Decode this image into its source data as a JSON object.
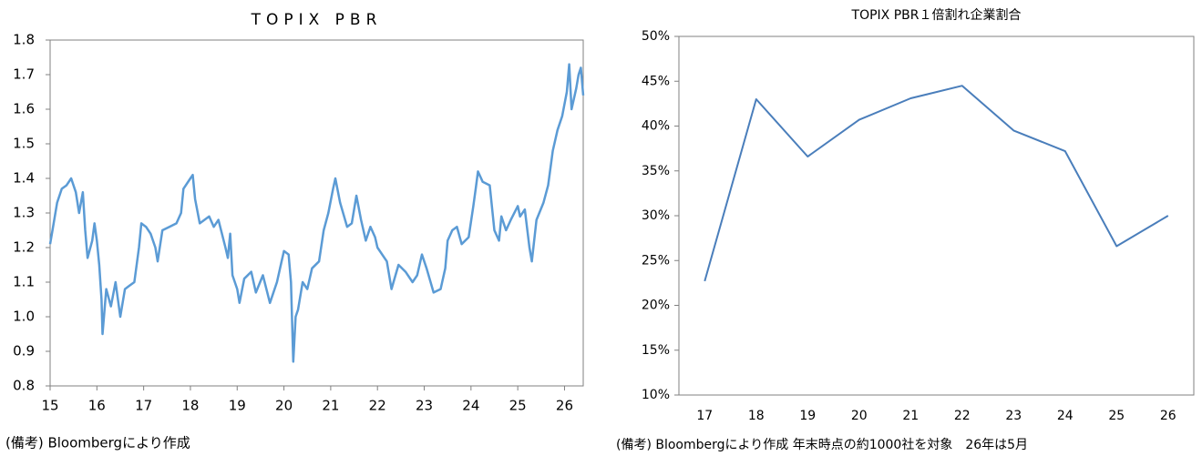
{
  "chart_data": [
    {
      "type": "line",
      "title": "TOPIX PBR",
      "note": "(備考) Bloombergにより作成",
      "color": "#5b9bd5",
      "xlim": [
        15,
        26.4
      ],
      "xticks": [
        15,
        16,
        17,
        18,
        19,
        20,
        21,
        22,
        23,
        24,
        25,
        26
      ],
      "ylim": [
        0.8,
        1.8
      ],
      "yticks": [
        1.8,
        1.7,
        1.6,
        1.5,
        1.4,
        1.3,
        1.2,
        1.1,
        {
          "value": 1,
          "label": "1.0"
        },
        0.9,
        0.8
      ],
      "x": [
        15.0,
        15.05,
        15.15,
        15.25,
        15.35,
        15.45,
        15.55,
        15.62,
        15.7,
        15.75,
        15.8,
        15.9,
        15.95,
        16.0,
        16.05,
        16.1,
        16.12,
        16.2,
        16.3,
        16.4,
        16.5,
        16.6,
        16.7,
        16.8,
        16.9,
        16.95,
        17.05,
        17.15,
        17.25,
        17.3,
        17.4,
        17.55,
        17.7,
        17.8,
        17.85,
        18.0,
        18.05,
        18.1,
        18.2,
        18.3,
        18.4,
        18.5,
        18.6,
        18.75,
        18.8,
        18.85,
        18.9,
        19.0,
        19.05,
        19.15,
        19.3,
        19.4,
        19.55,
        19.7,
        19.85,
        19.95,
        20.0,
        20.1,
        20.15,
        20.2,
        20.25,
        20.3,
        20.4,
        20.5,
        20.6,
        20.75,
        20.85,
        20.95,
        21.05,
        21.1,
        21.2,
        21.35,
        21.45,
        21.55,
        21.65,
        21.75,
        21.85,
        21.95,
        22.0,
        22.2,
        22.3,
        22.45,
        22.6,
        22.75,
        22.85,
        22.95,
        23.05,
        23.2,
        23.35,
        23.45,
        23.5,
        23.6,
        23.7,
        23.8,
        23.95,
        24.05,
        24.1,
        24.15,
        24.25,
        24.4,
        24.5,
        24.6,
        24.65,
        24.75,
        24.85,
        25.0,
        25.05,
        25.15,
        25.25,
        25.3,
        25.4,
        25.55,
        25.65,
        25.75,
        25.85,
        25.95,
        26.05,
        26.1,
        26.15,
        26.25,
        26.3,
        26.35,
        26.4
      ],
      "values": [
        1.21,
        1.25,
        1.33,
        1.37,
        1.38,
        1.4,
        1.36,
        1.3,
        1.36,
        1.25,
        1.17,
        1.22,
        1.27,
        1.22,
        1.15,
        1.05,
        0.95,
        1.08,
        1.03,
        1.1,
        1.0,
        1.08,
        1.09,
        1.1,
        1.2,
        1.27,
        1.26,
        1.24,
        1.2,
        1.16,
        1.25,
        1.26,
        1.27,
        1.3,
        1.37,
        1.4,
        1.41,
        1.34,
        1.27,
        1.28,
        1.29,
        1.26,
        1.28,
        1.2,
        1.17,
        1.24,
        1.12,
        1.08,
        1.04,
        1.11,
        1.13,
        1.07,
        1.12,
        1.04,
        1.1,
        1.16,
        1.19,
        1.18,
        1.1,
        0.87,
        1.0,
        1.02,
        1.1,
        1.08,
        1.14,
        1.16,
        1.25,
        1.3,
        1.37,
        1.4,
        1.33,
        1.26,
        1.27,
        1.35,
        1.28,
        1.22,
        1.26,
        1.23,
        1.2,
        1.16,
        1.08,
        1.15,
        1.13,
        1.1,
        1.12,
        1.18,
        1.14,
        1.07,
        1.08,
        1.14,
        1.22,
        1.25,
        1.26,
        1.21,
        1.23,
        1.32,
        1.37,
        1.42,
        1.39,
        1.38,
        1.25,
        1.22,
        1.29,
        1.25,
        1.28,
        1.32,
        1.29,
        1.31,
        1.2,
        1.16,
        1.28,
        1.33,
        1.38,
        1.48,
        1.54,
        1.58,
        1.65,
        1.73,
        1.6,
        1.66,
        1.7,
        1.72,
        1.64
      ]
    },
    {
      "type": "line",
      "title": "TOPIX PBR１倍割れ企業割合",
      "note": "(備考) Bloombergにより作成 年末時点の約1000社を対象　26年は5月",
      "color": "#4a7ebb",
      "categories": [
        "17",
        "18",
        "19",
        "20",
        "21",
        "22",
        "23",
        "24",
        "25",
        "26"
      ],
      "values": [
        22.7,
        43.0,
        36.6,
        40.7,
        43.1,
        44.5,
        39.5,
        37.2,
        26.6,
        30.0
      ],
      "ylim": [
        10,
        50
      ],
      "yticks": [
        {
          "value": 50,
          "label": "50%"
        },
        {
          "value": 45,
          "label": "45%"
        },
        {
          "value": 40,
          "label": "40%"
        },
        {
          "value": 35,
          "label": "35%"
        },
        {
          "value": 30,
          "label": "30%"
        },
        {
          "value": 25,
          "label": "25%"
        },
        {
          "value": 20,
          "label": "20%"
        },
        {
          "value": 15,
          "label": "15%"
        },
        {
          "value": 10,
          "label": "10%"
        }
      ]
    }
  ]
}
